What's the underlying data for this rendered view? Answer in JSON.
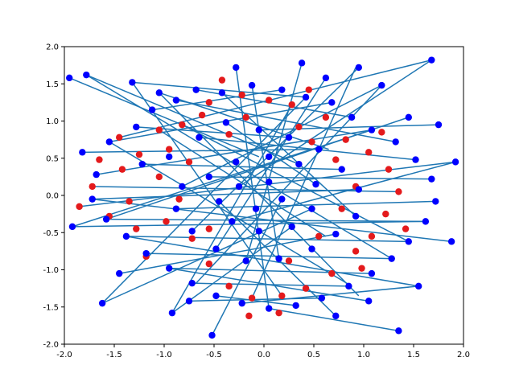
{
  "chart_data": {
    "type": "scatter",
    "title": "",
    "xlabel": "",
    "ylabel": "",
    "xlim": [
      -2.0,
      2.0
    ],
    "ylim": [
      -2.0,
      2.0
    ],
    "grid": false,
    "legend": "none",
    "x_ticks": [
      "-2.0",
      "-1.5",
      "-1.0",
      "-0.5",
      "0.0",
      "0.5",
      "1.0",
      "1.5",
      "2.0"
    ],
    "y_ticks": [
      "-2.0",
      "-1.5",
      "-1.0",
      "-0.5",
      "0.0",
      "0.5",
      "1.0",
      "1.5",
      "2.0"
    ],
    "colors": {
      "red_points": "#e41a1c",
      "blue_points": "#0000ff",
      "lines": "#1f77b4"
    },
    "series": [
      {
        "marker": "red-dot",
        "points": [
          [
            -1.05,
            0.88
          ],
          [
            -0.82,
            0.95
          ],
          [
            -0.55,
            1.25
          ],
          [
            -0.22,
            1.35
          ],
          [
            0.05,
            1.28
          ],
          [
            0.28,
            1.22
          ],
          [
            0.62,
            1.05
          ],
          [
            0.82,
            0.75
          ],
          [
            -1.25,
            0.55
          ],
          [
            -0.95,
            0.62
          ],
          [
            -1.42,
            0.35
          ],
          [
            -1.65,
            0.48
          ],
          [
            -1.72,
            0.12
          ],
          [
            -1.35,
            -0.08
          ],
          [
            -1.55,
            -0.28
          ],
          [
            -1.28,
            -0.45
          ],
          [
            -0.98,
            -0.35
          ],
          [
            -0.72,
            -0.58
          ],
          [
            -0.55,
            -0.92
          ],
          [
            -0.35,
            -1.22
          ],
          [
            -0.12,
            -1.38
          ],
          [
            0.18,
            -1.35
          ],
          [
            0.42,
            -1.25
          ],
          [
            0.68,
            -1.05
          ],
          [
            0.92,
            -0.75
          ],
          [
            1.08,
            -0.55
          ],
          [
            1.22,
            -0.25
          ],
          [
            1.35,
            0.05
          ],
          [
            1.25,
            0.35
          ],
          [
            1.05,
            0.58
          ],
          [
            0.92,
            0.12
          ],
          [
            0.78,
            -0.18
          ],
          [
            0.35,
            0.92
          ],
          [
            -0.35,
            0.82
          ],
          [
            -0.75,
            0.45
          ],
          [
            -1.05,
            0.25
          ],
          [
            -0.85,
            -0.05
          ],
          [
            -0.55,
            -0.45
          ],
          [
            0.25,
            -0.88
          ],
          [
            0.55,
            -0.55
          ],
          [
            0.72,
            0.48
          ],
          [
            0.48,
            0.72
          ],
          [
            -0.18,
            1.05
          ],
          [
            -0.62,
            1.08
          ],
          [
            1.18,
            0.85
          ],
          [
            0.98,
            -0.98
          ],
          [
            -1.18,
            -0.82
          ],
          [
            -1.45,
            0.78
          ],
          [
            -0.15,
            -1.62
          ],
          [
            0.45,
            1.42
          ],
          [
            0.15,
            -1.58
          ],
          [
            -0.42,
            1.55
          ],
          [
            1.42,
            -0.45
          ],
          [
            -1.85,
            -0.15
          ]
        ]
      },
      {
        "marker": "blue-dot",
        "points": [
          [
            -1.82,
            0.58
          ],
          [
            -1.55,
            0.72
          ],
          [
            -1.28,
            0.92
          ],
          [
            -1.12,
            1.15
          ],
          [
            -0.88,
            1.28
          ],
          [
            -0.68,
            1.42
          ],
          [
            -0.42,
            1.38
          ],
          [
            -0.12,
            1.48
          ],
          [
            0.18,
            1.42
          ],
          [
            0.42,
            1.32
          ],
          [
            0.68,
            1.25
          ],
          [
            0.88,
            1.05
          ],
          [
            1.08,
            0.88
          ],
          [
            1.32,
            0.72
          ],
          [
            1.52,
            0.48
          ],
          [
            1.68,
            0.22
          ],
          [
            1.72,
            -0.08
          ],
          [
            1.62,
            -0.35
          ],
          [
            1.45,
            -0.62
          ],
          [
            1.28,
            -0.85
          ],
          [
            1.08,
            -1.05
          ],
          [
            0.85,
            -1.22
          ],
          [
            0.58,
            -1.38
          ],
          [
            0.32,
            -1.48
          ],
          [
            0.05,
            -1.52
          ],
          [
            -0.22,
            -1.45
          ],
          [
            -0.48,
            -1.35
          ],
          [
            -0.72,
            -1.18
          ],
          [
            -0.95,
            -0.98
          ],
          [
            -1.18,
            -0.78
          ],
          [
            -1.38,
            -0.55
          ],
          [
            -1.58,
            -0.32
          ],
          [
            -1.72,
            -0.05
          ],
          [
            -1.68,
            0.28
          ],
          [
            -1.22,
            0.42
          ],
          [
            -0.95,
            0.52
          ],
          [
            -0.65,
            0.78
          ],
          [
            -0.38,
            0.98
          ],
          [
            -0.05,
            0.88
          ],
          [
            0.25,
            0.78
          ],
          [
            0.55,
            0.62
          ],
          [
            0.78,
            0.35
          ],
          [
            0.95,
            0.08
          ],
          [
            0.92,
            -0.28
          ],
          [
            0.72,
            -0.52
          ],
          [
            0.48,
            -0.72
          ],
          [
            0.15,
            -0.85
          ],
          [
            -0.18,
            -0.88
          ],
          [
            -0.48,
            -0.72
          ],
          [
            -0.72,
            -0.48
          ],
          [
            -0.88,
            -0.18
          ],
          [
            -0.82,
            0.12
          ],
          [
            -0.55,
            0.25
          ],
          [
            -0.28,
            0.45
          ],
          [
            0.05,
            0.52
          ],
          [
            0.35,
            0.42
          ],
          [
            0.52,
            0.15
          ],
          [
            0.48,
            -0.18
          ],
          [
            0.28,
            -0.42
          ],
          [
            -0.05,
            -0.48
          ],
          [
            -0.32,
            -0.35
          ],
          [
            -0.45,
            -0.08
          ],
          [
            -0.25,
            0.12
          ],
          [
            0.05,
            0.18
          ],
          [
            0.18,
            -0.05
          ],
          [
            -0.08,
            -0.18
          ],
          [
            -1.92,
            -0.42
          ],
          [
            -1.78,
            1.62
          ],
          [
            1.68,
            1.82
          ],
          [
            1.35,
            -1.82
          ],
          [
            -0.52,
            -1.88
          ],
          [
            0.38,
            1.78
          ],
          [
            1.92,
            0.45
          ],
          [
            -1.62,
            -1.45
          ],
          [
            0.72,
            -1.62
          ],
          [
            -1.32,
            1.52
          ],
          [
            1.18,
            1.48
          ],
          [
            -0.92,
            -1.58
          ],
          [
            1.55,
            -1.22
          ],
          [
            -1.95,
            1.58
          ],
          [
            1.88,
            -0.62
          ],
          [
            -0.28,
            1.72
          ],
          [
            1.75,
            0.95
          ],
          [
            -1.45,
            -1.05
          ],
          [
            0.62,
            1.58
          ],
          [
            1.05,
            -1.42
          ],
          [
            -1.05,
            1.38
          ],
          [
            0.95,
            1.72
          ],
          [
            -0.75,
            -1.42
          ],
          [
            1.45,
            1.05
          ]
        ]
      }
    ],
    "line_segments": [
      [
        [
          -1.95,
          1.58
        ],
        [
          -0.05,
          0.52
        ]
      ],
      [
        [
          -1.82,
          0.58
        ],
        [
          0.55,
          0.62
        ]
      ],
      [
        [
          -1.78,
          1.62
        ],
        [
          0.35,
          0.42
        ]
      ],
      [
        [
          -1.72,
          -0.05
        ],
        [
          0.95,
          0.08
        ]
      ],
      [
        [
          -1.68,
          0.28
        ],
        [
          1.08,
          0.88
        ]
      ],
      [
        [
          -1.62,
          -1.45
        ],
        [
          0.48,
          -0.18
        ]
      ],
      [
        [
          -1.58,
          -0.32
        ],
        [
          1.62,
          -0.35
        ]
      ],
      [
        [
          -1.55,
          0.72
        ],
        [
          0.68,
          1.25
        ]
      ],
      [
        [
          -1.45,
          -1.05
        ],
        [
          0.72,
          -0.52
        ]
      ],
      [
        [
          -1.38,
          -0.55
        ],
        [
          1.45,
          -0.62
        ]
      ],
      [
        [
          -1.32,
          1.52
        ],
        [
          0.42,
          1.32
        ]
      ],
      [
        [
          -1.28,
          0.92
        ],
        [
          0.25,
          0.78
        ]
      ],
      [
        [
          -1.22,
          0.42
        ],
        [
          0.78,
          0.35
        ]
      ],
      [
        [
          -1.18,
          -0.78
        ],
        [
          1.28,
          -0.85
        ]
      ],
      [
        [
          -1.12,
          1.15
        ],
        [
          0.18,
          1.42
        ]
      ],
      [
        [
          -1.05,
          1.38
        ],
        [
          0.95,
          -1.35
        ]
      ],
      [
        [
          -0.95,
          -0.98
        ],
        [
          1.08,
          -1.05
        ]
      ],
      [
        [
          -0.92,
          -1.58
        ],
        [
          0.28,
          -0.42
        ]
      ],
      [
        [
          -0.88,
          1.28
        ],
        [
          1.32,
          0.72
        ]
      ],
      [
        [
          -0.88,
          -0.18
        ],
        [
          1.72,
          -0.08
        ]
      ],
      [
        [
          -0.75,
          -1.42
        ],
        [
          0.58,
          -1.38
        ]
      ],
      [
        [
          -0.72,
          -1.18
        ],
        [
          0.85,
          -1.22
        ]
      ],
      [
        [
          -0.68,
          1.42
        ],
        [
          0.88,
          1.05
        ]
      ],
      [
        [
          -0.65,
          0.78
        ],
        [
          1.52,
          0.48
        ]
      ],
      [
        [
          -0.55,
          0.25
        ],
        [
          1.68,
          0.22
        ]
      ],
      [
        [
          -0.52,
          -1.88
        ],
        [
          0.18,
          -0.05
        ]
      ],
      [
        [
          -0.48,
          -1.35
        ],
        [
          0.32,
          -1.48
        ]
      ],
      [
        [
          -0.42,
          1.38
        ],
        [
          0.92,
          -0.28
        ]
      ],
      [
        [
          -0.38,
          0.98
        ],
        [
          0.52,
          0.15
        ]
      ],
      [
        [
          -0.32,
          -0.35
        ],
        [
          1.92,
          0.45
        ]
      ],
      [
        [
          -0.28,
          1.72
        ],
        [
          0.05,
          -1.52
        ]
      ],
      [
        [
          -0.22,
          -1.45
        ],
        [
          1.55,
          -1.22
        ]
      ],
      [
        [
          -0.12,
          1.48
        ],
        [
          0.15,
          -0.85
        ]
      ],
      [
        [
          -0.05,
          0.88
        ],
        [
          1.75,
          0.95
        ]
      ],
      [
        [
          0.05,
          -1.52
        ],
        [
          1.35,
          -1.82
        ]
      ],
      [
        [
          0.38,
          1.78
        ],
        [
          -0.18,
          -0.88
        ]
      ],
      [
        [
          0.62,
          1.58
        ],
        [
          -0.48,
          -0.72
        ]
      ],
      [
        [
          0.95,
          1.72
        ],
        [
          -0.72,
          -0.48
        ]
      ],
      [
        [
          1.18,
          1.48
        ],
        [
          -0.82,
          0.12
        ]
      ],
      [
        [
          1.45,
          1.05
        ],
        [
          -1.58,
          -0.32
        ]
      ],
      [
        [
          1.68,
          1.82
        ],
        [
          -0.25,
          0.12
        ]
      ],
      [
        [
          1.88,
          -0.62
        ],
        [
          -1.72,
          -0.05
        ]
      ],
      [
        [
          1.55,
          -1.22
        ],
        [
          -1.38,
          -0.55
        ]
      ],
      [
        [
          1.05,
          -1.42
        ],
        [
          -0.95,
          -0.98
        ]
      ],
      [
        [
          0.72,
          -1.62
        ],
        [
          -0.45,
          -0.08
        ]
      ],
      [
        [
          -1.92,
          -0.42
        ],
        [
          1.62,
          -0.35
        ]
      ],
      [
        [
          -1.85,
          -0.15
        ],
        [
          1.92,
          0.45
        ]
      ],
      [
        [
          -1.45,
          0.78
        ],
        [
          1.68,
          1.82
        ]
      ],
      [
        [
          -1.05,
          0.88
        ],
        [
          0.62,
          -0.55
        ]
      ],
      [
        [
          0.42,
          1.32
        ],
        [
          -1.62,
          -1.45
        ]
      ],
      [
        [
          1.08,
          0.88
        ],
        [
          -1.92,
          -0.42
        ]
      ],
      [
        [
          0.88,
          -1.22
        ],
        [
          -1.55,
          0.72
        ]
      ],
      [
        [
          1.28,
          -0.85
        ],
        [
          -1.78,
          1.62
        ]
      ],
      [
        [
          -0.12,
          -1.38
        ],
        [
          0.92,
          1.72
        ]
      ],
      [
        [
          0.18,
          -1.35
        ],
        [
          -1.32,
          1.52
        ]
      ],
      [
        [
          -0.82,
          0.95
        ],
        [
          1.45,
          -0.62
        ]
      ],
      [
        [
          -1.72,
          0.12
        ],
        [
          1.35,
          0.05
        ]
      ],
      [
        [
          0.65,
          0.62
        ],
        [
          -1.05,
          1.38
        ]
      ],
      [
        [
          -0.68,
          -1.18
        ],
        [
          1.18,
          1.48
        ]
      ],
      [
        [
          0.28,
          1.22
        ],
        [
          -0.92,
          -1.58
        ]
      ]
    ]
  }
}
